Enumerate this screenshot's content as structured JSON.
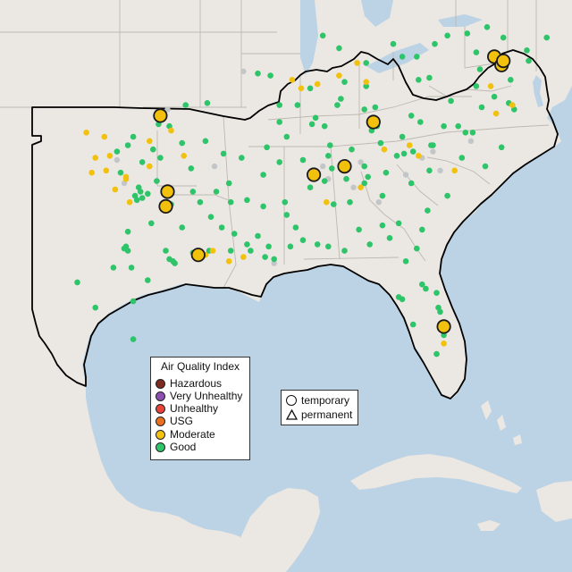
{
  "colors": {
    "water": "#bcd3e6",
    "land": "#ebe7e2",
    "border": "#bdb8b2",
    "outline": "#000000"
  },
  "legend_aqi": {
    "title": "Air Quality Index",
    "items": [
      {
        "label": "Hazardous",
        "color": "#7e2a20"
      },
      {
        "label": "Very Unhealthy",
        "color": "#8e4fb3"
      },
      {
        "label": "Unhealthy",
        "color": "#e8433a"
      },
      {
        "label": "USG",
        "color": "#e8701f"
      },
      {
        "label": "Moderate",
        "color": "#f2c10d"
      },
      {
        "label": "Good",
        "color": "#2ec46a"
      }
    ]
  },
  "legend_type": {
    "items": [
      {
        "label": "temporary",
        "shape": "circle"
      },
      {
        "label": "permanent",
        "shape": "triangle"
      }
    ]
  },
  "stations": {
    "good": [
      [
        -96.0,
        36.2
      ],
      [
        -95.4,
        36.1
      ],
      [
        -97.4,
        35.6
      ],
      [
        -97.7,
        35.2
      ],
      [
        -98.3,
        34.9
      ],
      [
        -96.9,
        34.4
      ],
      [
        -95.9,
        34.6
      ],
      [
        -94.7,
        35.3
      ],
      [
        -93.4,
        35.4
      ],
      [
        -92.4,
        34.8
      ],
      [
        -91.4,
        34.6
      ],
      [
        -92.1,
        33.4
      ],
      [
        -92.8,
        33.0
      ],
      [
        -94.1,
        33.0
      ],
      [
        -97.3,
        32.8
      ],
      [
        -96.6,
        32.9
      ],
      [
        -96.9,
        32.7
      ],
      [
        -97.1,
        33.2
      ],
      [
        -96.1,
        33.5
      ],
      [
        -97.9,
        30.3
      ],
      [
        -97.7,
        30.2
      ],
      [
        -97.8,
        30.4
      ],
      [
        -97.5,
        29.4
      ],
      [
        -98.5,
        29.4
      ],
      [
        -95.4,
        29.8
      ],
      [
        -95.2,
        29.7
      ],
      [
        -95.1,
        29.6
      ],
      [
        -95.6,
        30.2
      ],
      [
        -94.1,
        30.1
      ],
      [
        -93.2,
        30.2
      ],
      [
        -92.0,
        30.2
      ],
      [
        -91.1,
        30.5
      ],
      [
        -90.9,
        30.2
      ],
      [
        -90.1,
        29.9
      ],
      [
        -89.6,
        29.8
      ],
      [
        -90.5,
        30.9
      ],
      [
        -90.2,
        32.3
      ],
      [
        -91.1,
        32.6
      ],
      [
        -88.7,
        30.4
      ],
      [
        -88.0,
        30.7
      ],
      [
        -87.2,
        30.5
      ],
      [
        -86.6,
        30.4
      ],
      [
        -85.7,
        30.2
      ],
      [
        -84.3,
        30.5
      ],
      [
        -83.6,
        31.4
      ],
      [
        -82.3,
        29.7
      ],
      [
        -81.4,
        28.6
      ],
      [
        -81.2,
        28.4
      ],
      [
        -80.6,
        28.2
      ],
      [
        -81.9,
        26.7
      ],
      [
        -80.1,
        26.7
      ],
      [
        -80.2,
        26.2
      ],
      [
        -80.5,
        27.5
      ],
      [
        -82.5,
        27.9
      ],
      [
        -82.7,
        28.0
      ],
      [
        -81.7,
        30.3
      ],
      [
        -81.1,
        32.1
      ],
      [
        -80.0,
        32.8
      ],
      [
        -81.0,
        34.0
      ],
      [
        -80.8,
        35.2
      ],
      [
        -80.2,
        36.1
      ],
      [
        -79.0,
        35.8
      ],
      [
        -78.6,
        35.8
      ],
      [
        -77.9,
        34.2
      ],
      [
        -77.0,
        35.1
      ],
      [
        -79.4,
        36.1
      ],
      [
        -82.5,
        35.6
      ],
      [
        -84.2,
        35.9
      ],
      [
        -85.3,
        35.0
      ],
      [
        -86.8,
        36.1
      ],
      [
        -87.3,
        36.5
      ],
      [
        -88.3,
        37.1
      ],
      [
        -89.3,
        37.1
      ],
      [
        -86.6,
        34.7
      ],
      [
        -86.8,
        33.5
      ],
      [
        -87.6,
        33.2
      ],
      [
        -85.4,
        32.5
      ],
      [
        -86.3,
        32.4
      ],
      [
        -88.4,
        31.3
      ],
      [
        -84.4,
        33.7
      ],
      [
        -84.6,
        34.2
      ],
      [
        -83.4,
        33.9
      ],
      [
        -83.6,
        32.8
      ],
      [
        -82.0,
        33.4
      ],
      [
        -81.9,
        34.9
      ],
      [
        -82.4,
        34.8
      ],
      [
        -79.8,
        37.3
      ],
      [
        -78.4,
        38.0
      ],
      [
        -77.4,
        37.5
      ],
      [
        -76.3,
        36.9
      ],
      [
        -76.6,
        37.2
      ],
      [
        -78.1,
        37.0
      ],
      [
        -81.0,
        38.4
      ],
      [
        -81.6,
        38.3
      ],
      [
        -84.5,
        38.0
      ],
      [
        -85.7,
        38.2
      ],
      [
        -87.6,
        37.9
      ],
      [
        -86.0,
        39.8
      ],
      [
        -83.0,
        40.0
      ],
      [
        -84.5,
        39.1
      ],
      [
        -82.5,
        39.4
      ],
      [
        -80.7,
        40.0
      ],
      [
        -80.0,
        40.4
      ],
      [
        -81.7,
        39.4
      ],
      [
        -82.0,
        36.6
      ],
      [
        -83.9,
        36.1
      ],
      [
        -86.5,
        35.2
      ],
      [
        -88.9,
        35.6
      ],
      [
        -90.0,
        35.1
      ],
      [
        -89.3,
        36.3
      ],
      [
        -90.5,
        38.6
      ],
      [
        -93.3,
        37.2
      ],
      [
        -94.5,
        37.1
      ],
      [
        -88.0,
        34.5
      ],
      [
        -89.3,
        34.4
      ],
      [
        -90.2,
        33.8
      ],
      [
        -84.9,
        31.2
      ],
      [
        -82.7,
        31.5
      ],
      [
        -83.2,
        30.8
      ],
      [
        -80.6,
        25.3
      ],
      [
        -97.4,
        26.0
      ],
      [
        -99.5,
        27.5
      ],
      [
        -100.5,
        28.7
      ],
      [
        -97.4,
        27.8
      ],
      [
        -96.6,
        28.8
      ],
      [
        -78.2,
        38.8
      ],
      [
        -77.1,
        39.0
      ],
      [
        -76.7,
        39.3
      ],
      [
        -75.6,
        39.7
      ],
      [
        -78.9,
        40.5
      ],
      [
        -77.8,
        40.8
      ],
      [
        -76.9,
        40.3
      ],
      [
        -74.5,
        40.3
      ],
      [
        -86.9,
        40.4
      ],
      [
        -80.9,
        35.2
      ],
      [
        -81.5,
        36.3
      ],
      [
        -84.0,
        37.0
      ],
      [
        -87.5,
        36.2
      ],
      [
        -85.6,
        33.6
      ],
      [
        -84.6,
        33.4
      ],
      [
        -81.4,
        31.2
      ],
      [
        -80.4,
        27.3
      ],
      [
        -98.1,
        33.9
      ],
      [
        -96.4,
        31.5
      ],
      [
        -94.7,
        31.3
      ],
      [
        -95.3,
        32.4
      ],
      [
        -97.7,
        31.1
      ],
      [
        -92.5,
        31.3
      ],
      [
        -92.0,
        32.5
      ],
      [
        -93.7,
        32.5
      ],
      [
        -97.0,
        33.0
      ],
      [
        -97.2,
        32.6
      ],
      [
        -96.3,
        35.0
      ],
      [
        -94.2,
        34.1
      ],
      [
        -93.1,
        31.8
      ],
      [
        -91.8,
        31.0
      ],
      [
        -89.9,
        30.4
      ],
      [
        -82.8,
        34.7
      ],
      [
        -79.2,
        34.6
      ],
      [
        -76.5,
        38.3
      ],
      [
        -75.5,
        39.2
      ],
      [
        -78.4,
        39.6
      ],
      [
        -89.8,
        38.5
      ],
      [
        -89.0,
        32.5
      ],
      [
        -88.9,
        31.9
      ],
      [
        -83.7,
        35.3
      ],
      [
        -84.6,
        36.9
      ],
      [
        -85.9,
        37.4
      ],
      [
        -86.4,
        34.1
      ],
      [
        -86.1,
        37.1
      ]
    ],
    "moderate": [
      [
        -100.0,
        35.8
      ],
      [
        -99.0,
        35.6
      ],
      [
        -99.5,
        34.6
      ],
      [
        -98.9,
        34.0
      ],
      [
        -99.7,
        33.9
      ],
      [
        -98.4,
        33.1
      ],
      [
        -97.8,
        33.7
      ],
      [
        -96.5,
        35.4
      ],
      [
        -96.5,
        34.2
      ],
      [
        -95.3,
        35.9
      ],
      [
        -94.6,
        34.7
      ],
      [
        -97.6,
        32.5
      ],
      [
        -97.8,
        33.6
      ],
      [
        -93.4,
        30.0
      ],
      [
        -93.0,
        30.2
      ],
      [
        -92.1,
        29.7
      ],
      [
        -91.3,
        29.9
      ],
      [
        -88.1,
        37.9
      ],
      [
        -87.2,
        38.1
      ],
      [
        -86.7,
        32.5
      ],
      [
        -83.5,
        35.0
      ],
      [
        -82.1,
        35.2
      ],
      [
        -81.6,
        34.7
      ],
      [
        -84.8,
        33.2
      ],
      [
        -79.6,
        34.0
      ],
      [
        -77.3,
        36.7
      ],
      [
        -77.6,
        38.0
      ],
      [
        -76.4,
        37.1
      ],
      [
        -85.0,
        39.1
      ],
      [
        -84.5,
        38.2
      ],
      [
        -80.2,
        25.8
      ],
      [
        -86.0,
        38.5
      ],
      [
        -88.6,
        38.3
      ],
      [
        -98.7,
        34.7
      ]
    ],
    "nodata": [
      [
        -95.5,
        36.9
      ],
      [
        -98.3,
        34.5
      ],
      [
        -97.9,
        33.4
      ],
      [
        -92.9,
        34.2
      ],
      [
        -89.6,
        29.6
      ],
      [
        -86.9,
        34.2
      ],
      [
        -86.6,
        33.6
      ],
      [
        -85.2,
        33.2
      ],
      [
        -83.8,
        32.5
      ],
      [
        -81.4,
        34.6
      ],
      [
        -78.7,
        35.4
      ],
      [
        -80.4,
        34.0
      ],
      [
        -80.8,
        34.9
      ],
      [
        -93.9,
        30.0
      ],
      [
        -91.3,
        38.7
      ],
      [
        -84.8,
        34.4
      ],
      [
        -82.3,
        33.8
      ]
    ],
    "temporary_moderate": [
      [
        -95.9,
        36.6
      ],
      [
        -95.5,
        33.0
      ],
      [
        -95.6,
        32.3
      ],
      [
        -93.8,
        30.0
      ],
      [
        -84.1,
        36.3
      ],
      [
        -85.7,
        34.2
      ],
      [
        -87.4,
        33.8
      ],
      [
        -77.4,
        39.4
      ],
      [
        -77.0,
        39.0
      ],
      [
        -76.9,
        39.2
      ],
      [
        -80.2,
        26.6
      ]
    ]
  }
}
